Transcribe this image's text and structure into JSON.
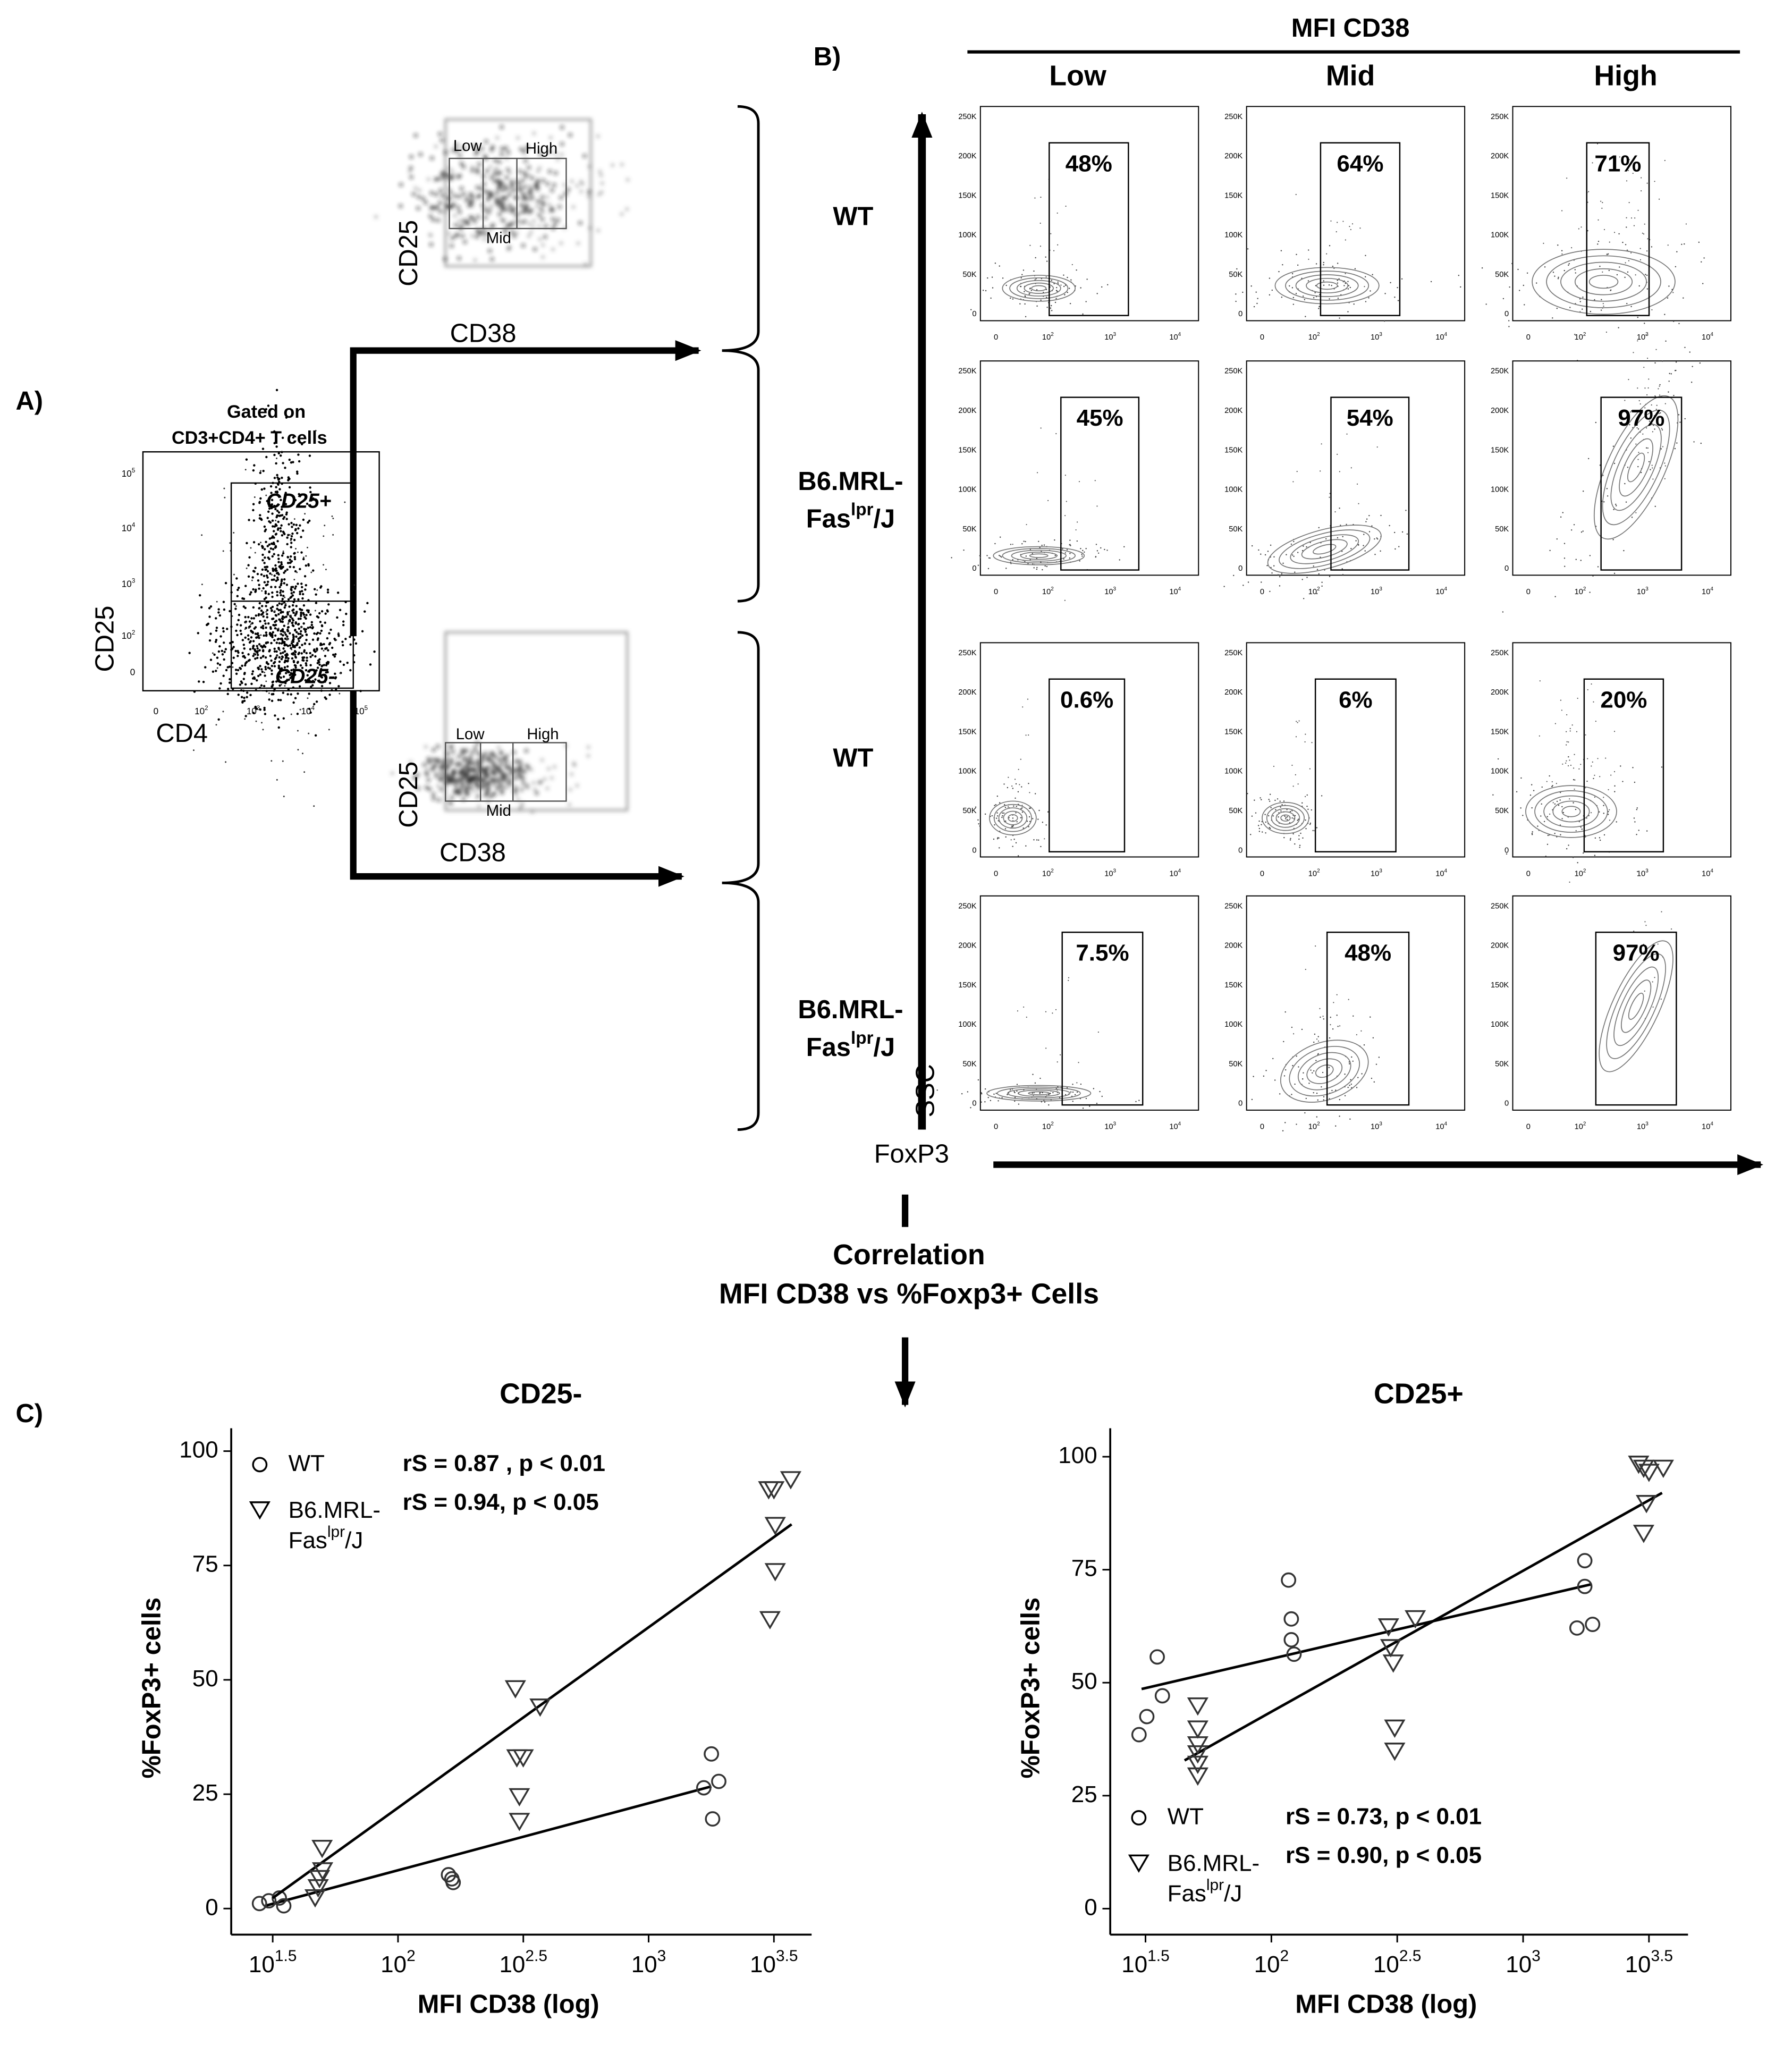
{
  "panel_a": {
    "label": "A)",
    "gate_title": [
      "Gated on",
      "CD3+CD4+ T cells"
    ],
    "gates": [
      "CD25+",
      "CD25-"
    ],
    "x_axis": "CD4",
    "y_axis": "CD25",
    "x_ticks": [
      "0",
      "10^{2}",
      "10^{3}",
      "10^{4}",
      "10^{5}"
    ],
    "y_ticks": [
      "0",
      "10^{2}",
      "10^{3}",
      "10^{4}",
      "10^{5}"
    ],
    "insets": [
      {
        "gates": [
          "Low",
          "High",
          "Mid"
        ],
        "x_axis": "CD38",
        "y_axis": "CD25"
      },
      {
        "gates": [
          "Low",
          "High",
          "Mid"
        ],
        "x_axis": "CD38",
        "y_axis": "CD25"
      }
    ]
  },
  "panel_b": {
    "label": "B)",
    "header": "MFI CD38",
    "columns": [
      "Low",
      "Mid",
      "High"
    ],
    "rows": [
      "WT",
      "B6.MRL-Fas^{lpr}/J",
      "WT",
      "B6.MRL-Fas^{lpr}/J"
    ],
    "percentages": [
      [
        "48%",
        "64%",
        "71%"
      ],
      [
        "45%",
        "54%",
        "97%"
      ],
      [
        "0.6%",
        "6%",
        "20%"
      ],
      [
        "7.5%",
        "48%",
        "97%"
      ]
    ],
    "y_axis": "SSC",
    "x_axis": "FoxP3",
    "y_ticks": [
      "0",
      "50K",
      "100K",
      "150K",
      "200K",
      "250K"
    ],
    "x_ticks": [
      "0",
      "10^{2}",
      "10^{3}",
      "10^{4}"
    ]
  },
  "correlation": {
    "title": "Correlation",
    "subtitle": "MFI CD38 vs %Foxp3+ Cells"
  },
  "panel_c": {
    "label": "C)"
  },
  "chart_data": [
    {
      "type": "scatter",
      "title": "CD25-",
      "xlabel": "MFI CD38 (log)",
      "ylabel": "%FoxP3+ cells",
      "xscale": "log",
      "xlim": [
        21.6,
        4470
      ],
      "xticks": [
        {
          "value": 31.62,
          "label": "10^{1.5}"
        },
        {
          "value": 100,
          "label": "10^{2}"
        },
        {
          "value": 316.2,
          "label": "10^{2.5}"
        },
        {
          "value": 1000,
          "label": "10^{3}"
        },
        {
          "value": 3162,
          "label": "10^{3.5}"
        }
      ],
      "ylim": [
        -5.7,
        105
      ],
      "yticks": [
        0,
        25,
        50,
        75,
        100
      ],
      "legend": "upper left",
      "annotations": [
        "rS = 0.87 , p < 0.01",
        "rS = 0.94, p < 0.05"
      ],
      "series": [
        {
          "name": "WT",
          "marker": "circle",
          "color": "#333333",
          "x": [
            28,
            30.5,
            33.6,
            35,
            159,
            164,
            166,
            1660,
            1780,
            1905,
            1800
          ],
          "values": [
            1.1,
            1.7,
            2.3,
            0.6,
            7.4,
            6.5,
            5.7,
            26.4,
            33.8,
            27.8,
            19.6
          ],
          "fit": {
            "x": [
              29.5,
              1780
            ],
            "values": [
              0.6,
              26.7
            ]
          }
        },
        {
          "name": "B6.MRL-Fas^{lpr}/J",
          "marker": "triangle",
          "color": "#333333",
          "x": [
            49.8,
            50,
            48.6,
            48,
            46.7,
            294,
            369,
            298,
            316,
            305,
            305,
            3013,
            3162,
            3690,
            3200,
            3200,
            3050
          ],
          "values": [
            13.4,
            8.5,
            6.8,
            4.8,
            2.6,
            48.3,
            44.3,
            33.2,
            33.2,
            24.7,
            19.3,
            91.8,
            91.8,
            94,
            84,
            73.9,
            63.4
          ],
          "fit": {
            "x": [
              31.6,
              3720
            ],
            "values": [
              2.3,
              84
            ]
          }
        }
      ]
    },
    {
      "type": "scatter",
      "title": "CD25+",
      "xlabel": "MFI CD38 (log)",
      "ylabel": "%FoxP3+ cells",
      "xscale": "log",
      "xlim": [
        22.9,
        4520
      ],
      "xticks": [
        {
          "value": 31.62,
          "label": "10^{1.5}"
        },
        {
          "value": 100,
          "label": "10^{2}"
        },
        {
          "value": 316.2,
          "label": "10^{2.5}"
        },
        {
          "value": 1000,
          "label": "10^{3}"
        },
        {
          "value": 3162,
          "label": "10^{3.5}"
        }
      ],
      "ylim": [
        -5.75,
        106.3
      ],
      "yticks": [
        0,
        25,
        50,
        75,
        100
      ],
      "legend": "lower left",
      "annotations": [
        "rS = 0.73, p < 0.01",
        "rS = 0.90, p < 0.05"
      ],
      "series": [
        {
          "name": "WT",
          "marker": "circle",
          "color": "#333333",
          "x": [
            29.8,
            32,
            35.2,
            36.9,
            117,
            120,
            120,
            123,
            1758,
            1758,
            1637,
            1888
          ],
          "values": [
            38.5,
            42.5,
            55.7,
            47.1,
            72.7,
            64.1,
            59.5,
            56.3,
            77,
            71.3,
            62.1,
            62.9
          ],
          "fit": {
            "x": [
              30.5,
              1875
            ],
            "values": [
              48.6,
              71.8
            ]
          }
        },
        {
          "name": "B6.MRL-Fas^{lpr}/J",
          "marker": "triangle",
          "color": "#333333",
          "x": [
            51,
            51,
            51,
            51,
            51,
            51,
            292,
            373,
            298,
            305,
            309,
            309,
            2877,
            3013,
            3162,
            3606,
            3090,
            3013
          ],
          "values": [
            45.1,
            40,
            36.5,
            34.5,
            32.2,
            29.6,
            62.6,
            64.4,
            58,
            54.6,
            40.2,
            35.1,
            98.6,
            97.7,
            96.8,
            97.7,
            89.9,
            83.3
          ],
          "fit": {
            "x": [
              45.2,
              3565
            ],
            "values": [
              32.8,
              92
            ]
          }
        }
      ]
    }
  ]
}
